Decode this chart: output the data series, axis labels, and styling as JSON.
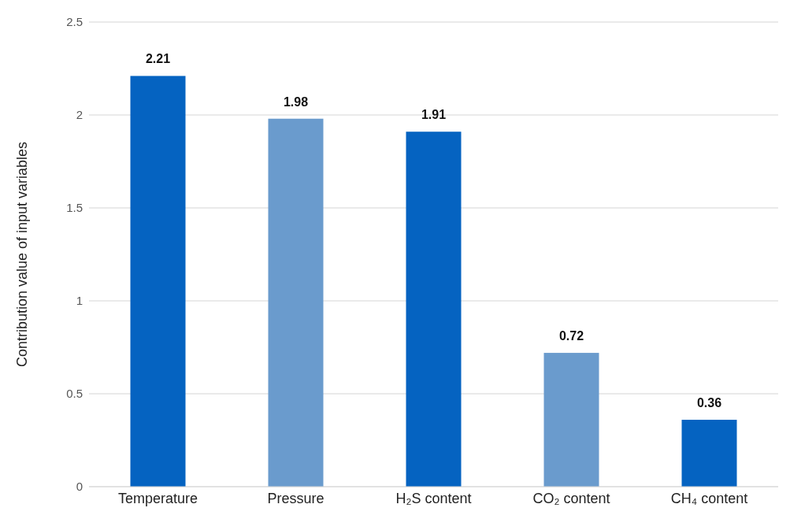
{
  "chart_data": {
    "type": "bar",
    "ylabel": "Contribution value of input variables",
    "categories": [
      "Temperature",
      "Pressure",
      "H₂S content",
      "CO₂ content",
      "CH₄ content"
    ],
    "values": [
      2.21,
      1.98,
      1.91,
      0.72,
      0.36
    ],
    "colors": [
      "#0563c1",
      "#6a9bcd",
      "#0563c1",
      "#6a9bcd",
      "#0563c1"
    ],
    "ylim": [
      0,
      2.5
    ],
    "yticks": [
      0,
      0.5,
      1,
      1.5,
      2,
      2.5
    ],
    "grid": "y",
    "data_labels": true
  }
}
